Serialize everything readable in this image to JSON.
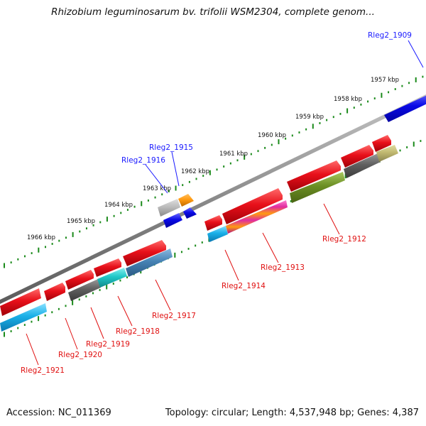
{
  "title": "Rhizobium leguminosarum bv. trifolii WSM2304, complete genom...",
  "footer": {
    "accession": "Accession: NC_011369",
    "topology": "Topology: circular; Length: 4,537,948 bp; Genes: 4,387"
  },
  "scale_ticks": [
    "1957 kbp",
    "1958 kbp",
    "1959 kbp",
    "1960 kbp",
    "1961 kbp",
    "1962 kbp",
    "1963 kbp",
    "1964 kbp",
    "1965 kbp",
    "1966 kbp"
  ],
  "genes": [
    {
      "id": "Rleg2_1909",
      "color": "#0a0ae6",
      "strand": "outer",
      "label_color": "#1a1aff"
    },
    {
      "id": "Rleg2_1912",
      "color": "#6b8e23",
      "strand": "inner",
      "label_color": "#e01010"
    },
    {
      "id": "Rleg2_1913",
      "color": "#e02ca0",
      "strand": "inner",
      "label_color": "#e01010"
    },
    {
      "id": "Rleg2_1914",
      "color": "#1ab0e8",
      "strand": "inner",
      "label_color": "#e01010"
    },
    {
      "id": "Rleg2_1915",
      "color": "#0a0ae6",
      "strand": "outer",
      "label_color": "#1a1aff"
    },
    {
      "id": "Rleg2_1916",
      "color": "#0a0ae6",
      "strand": "outer",
      "label_color": "#1a1aff"
    },
    {
      "id": "Rleg2_1917",
      "color": "#4682b4",
      "strand": "inner",
      "label_color": "#e01010"
    },
    {
      "id": "Rleg2_1918",
      "color": "#20c8c8",
      "strand": "inner",
      "label_color": "#e01010"
    },
    {
      "id": "Rleg2_1919",
      "color": "#606060",
      "strand": "inner",
      "label_color": "#e01010"
    },
    {
      "id": "Rleg2_1920",
      "color": "#e8101a",
      "strand": "outer",
      "label_color": "#e01010"
    },
    {
      "id": "Rleg2_1921",
      "color": "#1ab0e8",
      "strand": "inner",
      "label_color": "#e01010"
    }
  ],
  "colors": {
    "forward_strand": "#e8101a",
    "backbone": "#8a8a8a",
    "scale_dots": "#1a8a1a"
  }
}
